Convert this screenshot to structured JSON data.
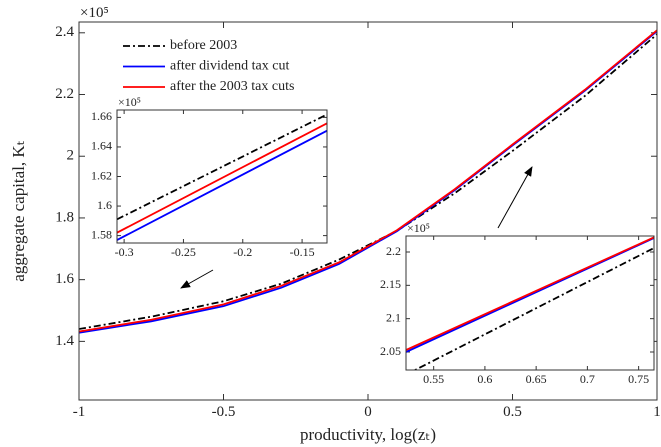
{
  "chart_data": [
    {
      "type": "line",
      "xlabel": "productivity, log(zₜ)",
      "ylabel": "aggregate capital, Kₜ",
      "y_exponent": "×10⁵",
      "x": [
        -1,
        -0.75,
        -0.5,
        -0.3,
        -0.1,
        0.1,
        0.3,
        0.5,
        0.75,
        1
      ],
      "series": [
        {
          "name": "before 2003",
          "color": "#000000",
          "style": "dashdot",
          "values": [
            1.44,
            1.48,
            1.53,
            1.587,
            1.665,
            1.758,
            1.88,
            2.017,
            2.195,
            2.395
          ]
        },
        {
          "name": "after dividend tax cut",
          "color": "#0000ff",
          "style": "solid",
          "values": [
            1.428,
            1.465,
            1.514,
            1.574,
            1.651,
            1.757,
            1.89,
            2.035,
            2.212,
            2.405
          ]
        },
        {
          "name": "after the 2003 tax cuts",
          "color": "#ff0000",
          "style": "solid",
          "values": [
            1.432,
            1.47,
            1.52,
            1.58,
            1.656,
            1.76,
            1.893,
            2.038,
            2.215,
            2.408
          ]
        }
      ],
      "xlim": [
        -1,
        1
      ],
      "ylim": [
        1.21,
        2.435
      ],
      "xticks": [
        -1,
        -0.5,
        0,
        0.5,
        1
      ],
      "yticks": [
        1.4,
        1.6,
        1.8,
        2,
        2.2,
        2.4
      ],
      "legend": "upper left"
    },
    {
      "type": "line",
      "y_exponent": "×10⁵",
      "x": [
        -0.306,
        -0.129
      ],
      "series": [
        {
          "color": "#000000",
          "style": "dashdot",
          "values": [
            1.591,
            1.662
          ]
        },
        {
          "color": "#0000ff",
          "style": "solid",
          "values": [
            1.577,
            1.651
          ]
        },
        {
          "color": "#ff0000",
          "style": "solid",
          "values": [
            1.582,
            1.656
          ]
        }
      ],
      "xlim": [
        -0.306,
        -0.129
      ],
      "ylim": [
        1.575,
        1.665
      ],
      "xticks": [
        -0.3,
        -0.25,
        -0.2,
        -0.15
      ],
      "yticks": [
        1.58,
        1.6,
        1.62,
        1.64,
        1.66
      ]
    },
    {
      "type": "line",
      "y_exponent": "×10⁵",
      "x": [
        0.523,
        0.765
      ],
      "series": [
        {
          "color": "#000000",
          "style": "dashdot",
          "values": [
            2.016,
            2.206
          ]
        },
        {
          "color": "#0000ff",
          "style": "solid",
          "values": [
            2.05,
            2.221
          ]
        },
        {
          "color": "#ff0000",
          "style": "solid",
          "values": [
            2.053,
            2.222
          ]
        }
      ],
      "xlim": [
        0.523,
        0.765
      ],
      "ylim": [
        2.023,
        2.224
      ],
      "xticks": [
        0.55,
        0.6,
        0.65,
        0.7,
        0.75
      ],
      "yticks": [
        2.05,
        2.1,
        2.15,
        2.2
      ]
    }
  ]
}
